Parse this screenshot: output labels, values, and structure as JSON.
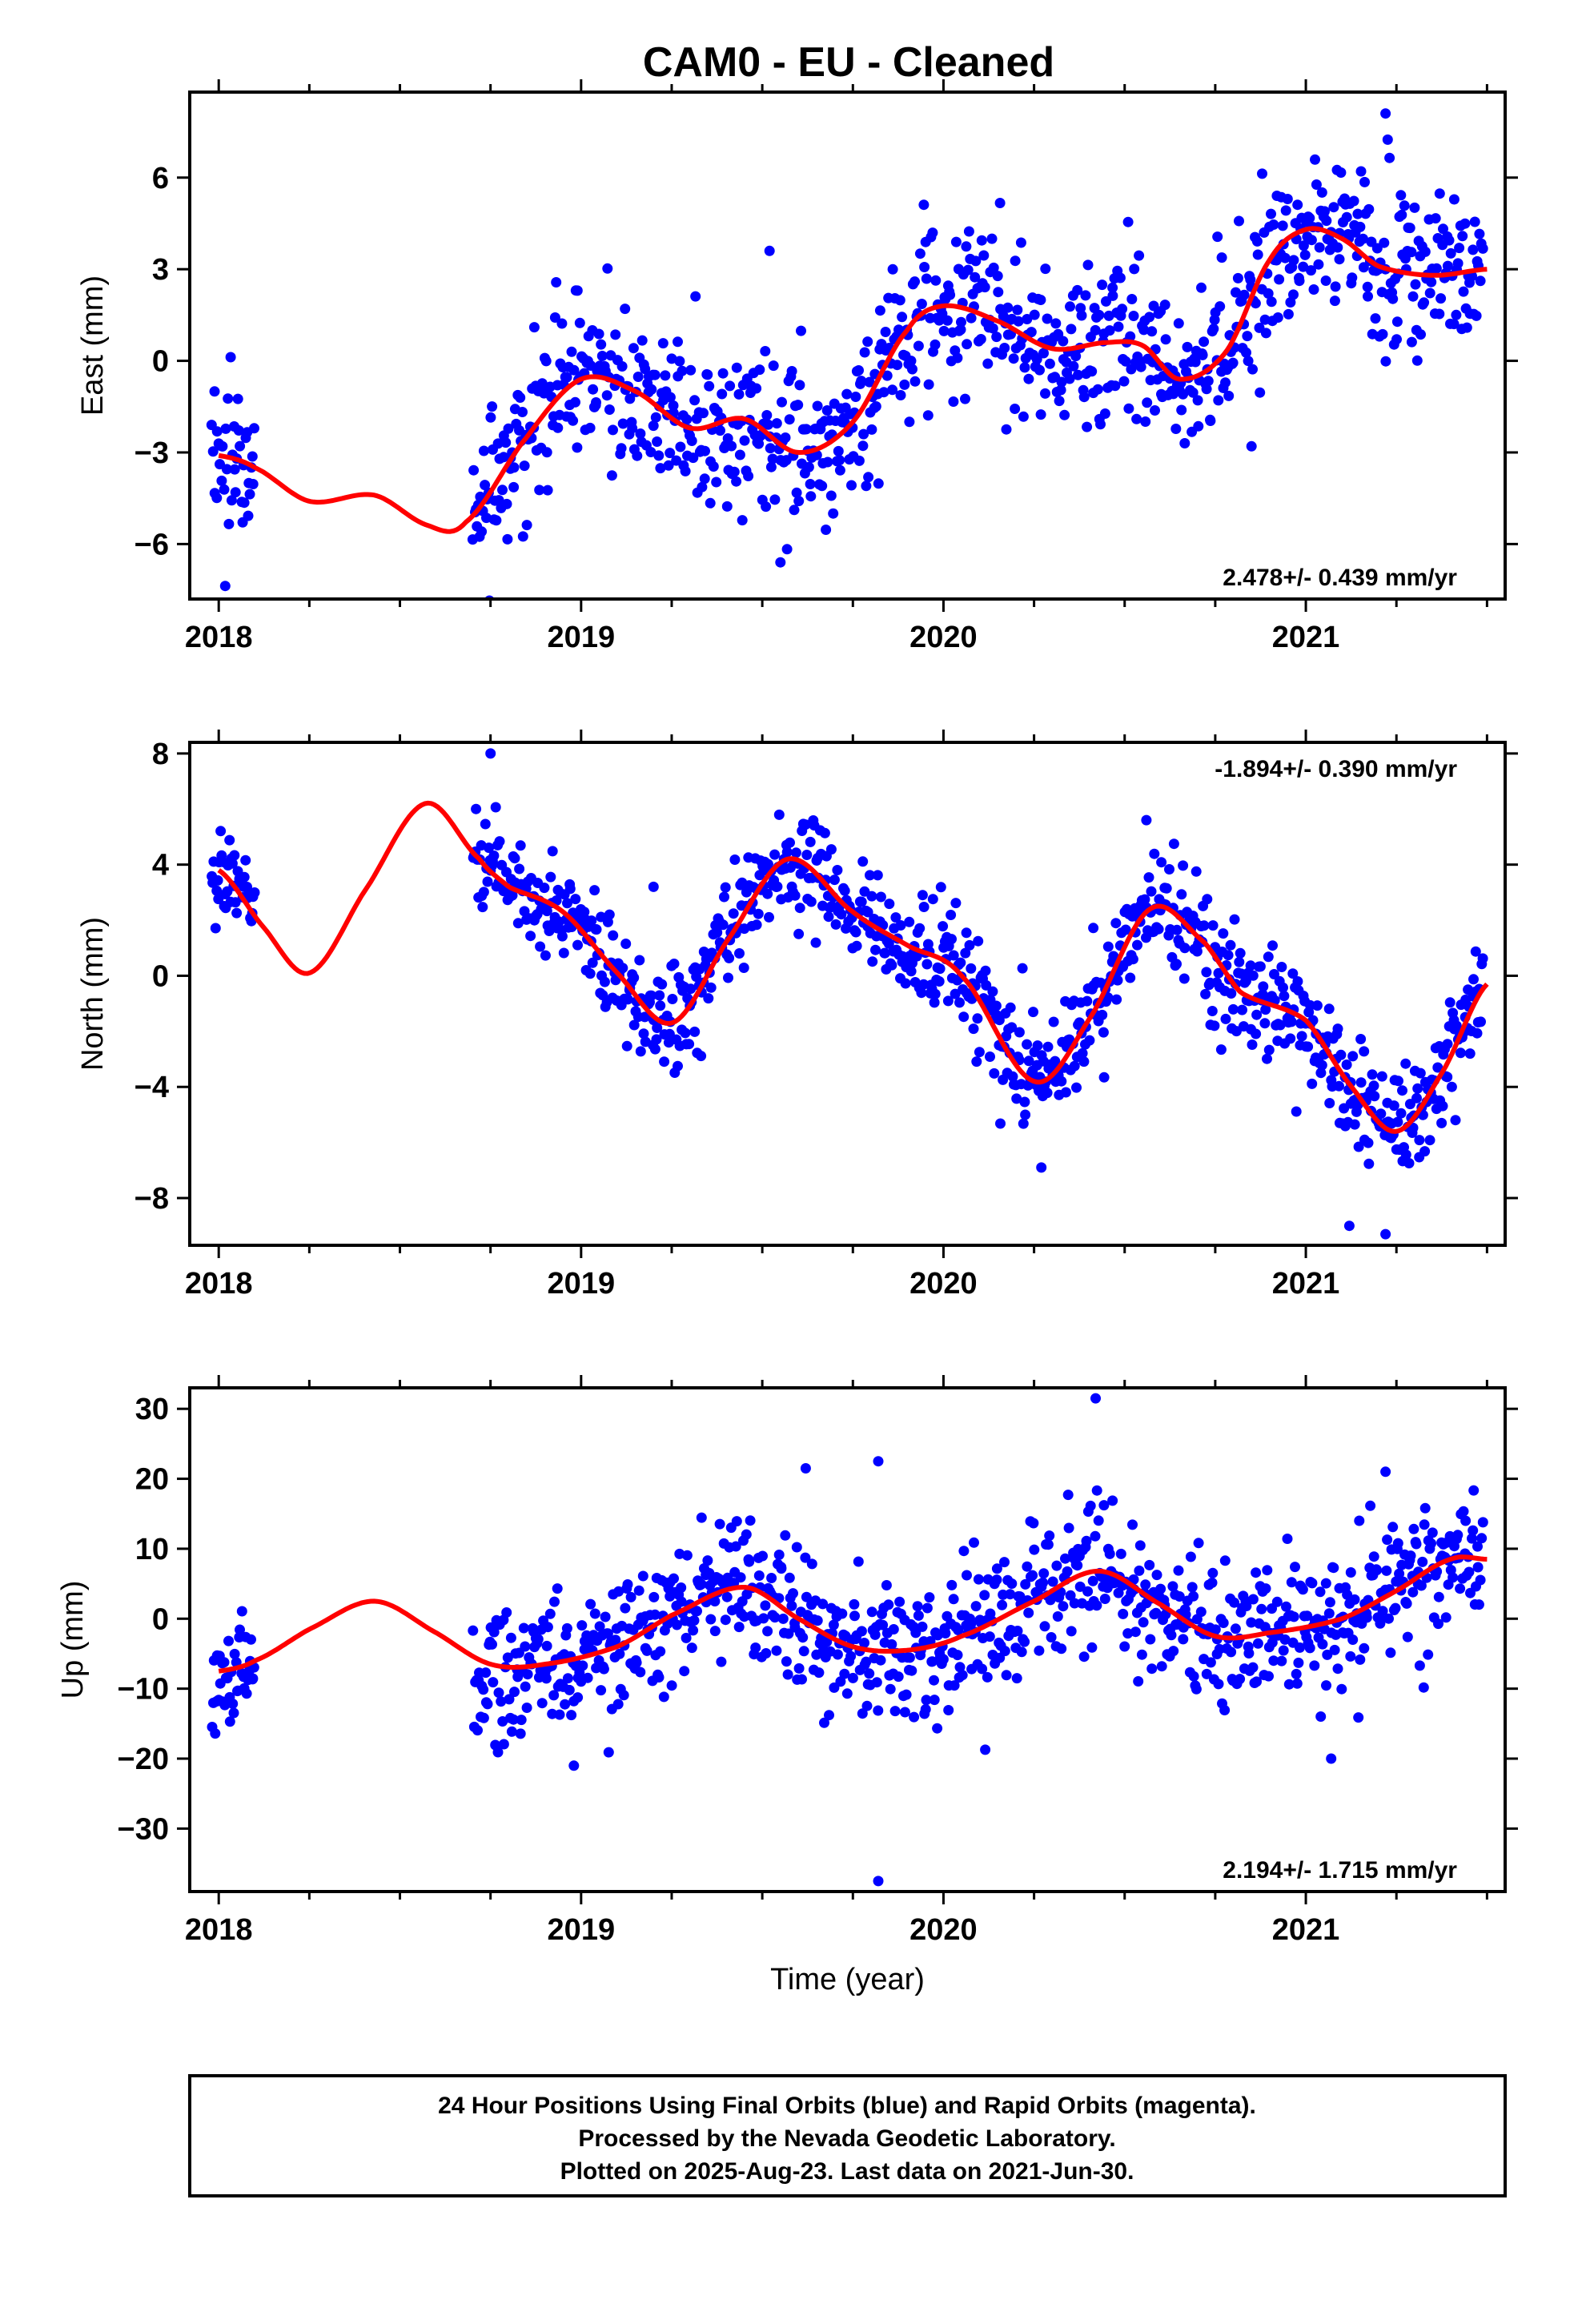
{
  "title": "CAM0  - EU - Cleaned",
  "footer": {
    "lines": [
      "24 Hour Positions Using Final Orbits (blue) and Rapid Orbits (magenta).",
      "Processed by the Nevada Geodetic Laboratory.",
      "Plotted on 2025-Aug-23. Last data on 2021-Jun-30."
    ]
  },
  "colors": {
    "points": "#0000ff",
    "model": "#ff0000",
    "axes": "#000000"
  },
  "chart_data": [
    {
      "type": "scatter",
      "panel": "east",
      "ylabel": "East (mm)",
      "xlabel": "",
      "xlim": [
        2017.92,
        2021.55
      ],
      "ylim": [
        -7.8,
        8.8
      ],
      "xticks": [
        2018,
        2019,
        2020,
        2021
      ],
      "xtick_labels": [
        "2018",
        "2019",
        "2020",
        "2021"
      ],
      "yticks": [
        -6,
        -3,
        0,
        3,
        6
      ],
      "ytick_labels": [
        "−6",
        "−3",
        "0",
        "3",
        "6"
      ],
      "rate_text": "2.478+/- 0.439 mm/yr",
      "rate_position": "bottom-right",
      "model_curve": {
        "x": [
          2018.0,
          2018.1,
          2018.25,
          2018.43,
          2018.58,
          2018.68,
          2018.85,
          2019.0,
          2019.15,
          2019.3,
          2019.45,
          2019.6,
          2019.75,
          2019.9,
          2020.0,
          2020.15,
          2020.3,
          2020.45,
          2020.55,
          2020.65,
          2020.78,
          2020.9,
          2021.0,
          2021.1,
          2021.2,
          2021.35,
          2021.5
        ],
        "y": [
          -3.1,
          -3.5,
          -4.6,
          -4.4,
          -5.4,
          -5.3,
          -2.5,
          -0.6,
          -1.0,
          -2.2,
          -1.9,
          -3.0,
          -2.0,
          1.0,
          1.8,
          1.3,
          0.4,
          0.6,
          0.5,
          -0.6,
          0.3,
          3.3,
          4.3,
          4.0,
          3.1,
          2.8,
          3.0
        ]
      },
      "points": {
        "segments": [
          {
            "x_range": [
              2017.98,
              2018.1
            ],
            "count": 40,
            "model_offset_sd": 1.1
          },
          {
            "x_range": [
              2018.7,
              2021.49
            ],
            "count": 900,
            "model_offset_sd": 1.4
          }
        ],
        "outliers": [
          [
            2019.52,
            3.6
          ],
          [
            2019.55,
            -6.6
          ],
          [
            2018.99,
            2.3
          ],
          [
            2020.85,
            -2.8
          ],
          [
            2021.22,
            8.1
          ]
        ]
      }
    },
    {
      "type": "scatter",
      "panel": "north",
      "ylabel": "North (mm)",
      "xlabel": "",
      "xlim": [
        2017.92,
        2021.55
      ],
      "ylim": [
        -9.7,
        8.4
      ],
      "xticks": [
        2018,
        2019,
        2020,
        2021
      ],
      "xtick_labels": [
        "2018",
        "2019",
        "2020",
        "2021"
      ],
      "yticks": [
        -8,
        -4,
        0,
        4,
        8
      ],
      "ytick_labels": [
        "−8",
        "−4",
        "0",
        "4",
        "8"
      ],
      "rate_text": "-1.894+/- 0.390 mm/yr",
      "rate_position": "top-right",
      "model_curve": {
        "x": [
          2018.0,
          2018.12,
          2018.25,
          2018.4,
          2018.57,
          2018.72,
          2018.8,
          2018.95,
          2019.1,
          2019.25,
          2019.4,
          2019.57,
          2019.75,
          2019.9,
          2020.05,
          2020.25,
          2020.4,
          2020.57,
          2020.72,
          2020.82,
          2021.0,
          2021.12,
          2021.25,
          2021.38,
          2021.5
        ],
        "y": [
          3.8,
          1.8,
          0.1,
          3.0,
          6.2,
          4.2,
          3.2,
          2.3,
          0.1,
          -1.7,
          1.2,
          4.2,
          2.3,
          1.1,
          0.0,
          -3.8,
          -1.6,
          2.4,
          1.2,
          -0.6,
          -1.6,
          -3.9,
          -5.6,
          -3.4,
          -0.3
        ]
      },
      "points": {
        "segments": [
          {
            "x_range": [
              2017.98,
              2018.1
            ],
            "count": 40,
            "model_offset_sd": 0.9
          },
          {
            "x_range": [
              2018.7,
              2021.49
            ],
            "count": 900,
            "model_offset_sd": 1.0
          }
        ],
        "outliers": [
          [
            2018.75,
            8.0
          ],
          [
            2019.2,
            3.2
          ],
          [
            2020.27,
            -6.9
          ],
          [
            2020.56,
            5.6
          ],
          [
            2021.12,
            -9.0
          ],
          [
            2021.22,
            -9.3
          ]
        ]
      }
    },
    {
      "type": "scatter",
      "panel": "up",
      "ylabel": "Up (mm)",
      "xlabel": "Time (year)",
      "xlim": [
        2017.92,
        2021.55
      ],
      "ylim": [
        -39,
        33
      ],
      "xticks": [
        2018,
        2019,
        2020,
        2021
      ],
      "xtick_labels": [
        "2018",
        "2019",
        "2020",
        "2021"
      ],
      "yticks": [
        -30,
        -20,
        -10,
        0,
        10,
        20,
        30
      ],
      "ytick_labels": [
        "−30",
        "−20",
        "−10",
        "0",
        "10",
        "20",
        "30"
      ],
      "rate_text": "2.194+/- 1.715 mm/yr",
      "rate_position": "bottom-right",
      "model_curve": {
        "x": [
          2018.0,
          2018.1,
          2018.25,
          2018.43,
          2018.6,
          2018.75,
          2018.9,
          2019.1,
          2019.25,
          2019.45,
          2019.6,
          2019.75,
          2019.9,
          2020.05,
          2020.25,
          2020.43,
          2020.6,
          2020.75,
          2020.9,
          2021.1,
          2021.25,
          2021.4,
          2021.5
        ],
        "y": [
          -7.5,
          -6.0,
          -1.5,
          2.5,
          -2.0,
          -6.5,
          -6.5,
          -4.0,
          0.5,
          4.5,
          0.0,
          -4.0,
          -4.5,
          -2.5,
          2.5,
          6.8,
          2.0,
          -2.5,
          -2.0,
          0.0,
          4.0,
          8.5,
          8.5
        ]
      },
      "points": {
        "segments": [
          {
            "x_range": [
              2017.98,
              2018.1
            ],
            "count": 40,
            "model_offset_sd": 4.0
          },
          {
            "x_range": [
              2018.7,
              2021.49
            ],
            "count": 900,
            "model_offset_sd": 5.0
          }
        ],
        "outliers": [
          [
            2020.42,
            31.5
          ],
          [
            2019.82,
            -37.5
          ],
          [
            2019.82,
            22.5
          ],
          [
            2018.98,
            -21.0
          ],
          [
            2019.62,
            21.5
          ],
          [
            2021.07,
            -20.0
          ],
          [
            2021.22,
            21.0
          ]
        ]
      }
    }
  ]
}
